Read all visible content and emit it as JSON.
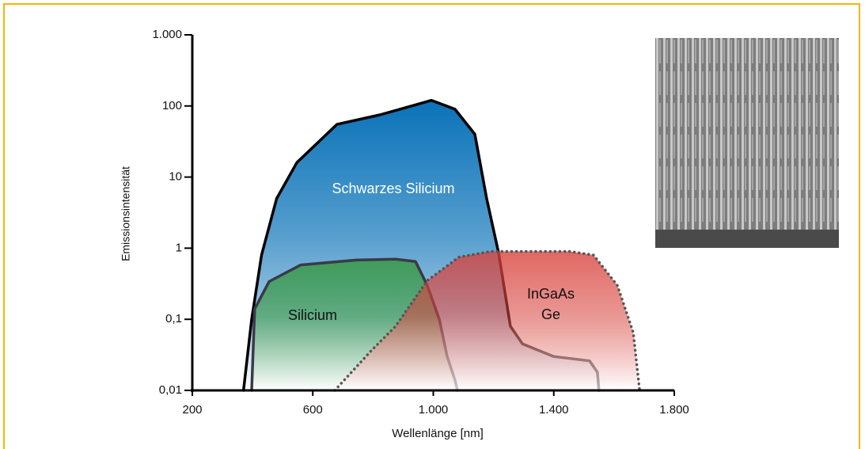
{
  "chart_data": {
    "type": "area",
    "x_label": "Wellenlänge [nm]",
    "y_label": "Emissionsintensität",
    "log_y": true,
    "xlim": [
      200,
      1800
    ],
    "xticks": [
      200,
      600,
      {
        "value": 1000,
        "label": "1.000"
      },
      {
        "value": 1400,
        "label": "1.400"
      },
      {
        "value": 1800,
        "label": "1.800"
      }
    ],
    "ylim": [
      0.01,
      1000
    ],
    "yticks": [
      {
        "value": 0.01,
        "label": "0,01"
      },
      {
        "value": 0.1,
        "label": "0,1"
      },
      1,
      10,
      100,
      {
        "value": 1000,
        "label": "1.000"
      }
    ],
    "series": [
      {
        "name": "Schwarzes Silicium",
        "color": "#0a72b8",
        "line_color": "#000000",
        "line_style": "solid",
        "x": [
          370,
          397,
          430,
          480,
          547,
          680,
          823,
          928,
          994,
          1072,
          1138,
          1177,
          1217,
          1256,
          1296,
          1400,
          1519,
          1545,
          1550
        ],
        "values": [
          0.01,
          0.1,
          0.8,
          5,
          16,
          55,
          75,
          100,
          120,
          90,
          40,
          5,
          0.85,
          0.08,
          0.045,
          0.03,
          0.026,
          0.018,
          0.01
        ]
      },
      {
        "name": "Silicium",
        "color": "#3d9a4c",
        "line_color": "#3a3a48",
        "line_style": "solid",
        "x": [
          397,
          407,
          455,
          560,
          744,
          875,
          941,
          980,
          1020,
          1046,
          1072,
          1080
        ],
        "values": [
          0.01,
          0.14,
          0.34,
          0.58,
          0.68,
          0.7,
          0.65,
          0.3,
          0.1,
          0.03,
          0.014,
          0.01
        ]
      },
      {
        "name": "InGaAs\nGe",
        "color": "#d8423c",
        "line_color": "#555555",
        "line_style": "dotted",
        "x": [
          673,
          796,
          875,
          980,
          1085,
          1190,
          1453,
          1532,
          1611,
          1664,
          1685
        ],
        "values": [
          0.01,
          0.037,
          0.08,
          0.35,
          0.75,
          0.9,
          0.9,
          0.8,
          0.3,
          0.065,
          0.01
        ]
      }
    ]
  }
}
